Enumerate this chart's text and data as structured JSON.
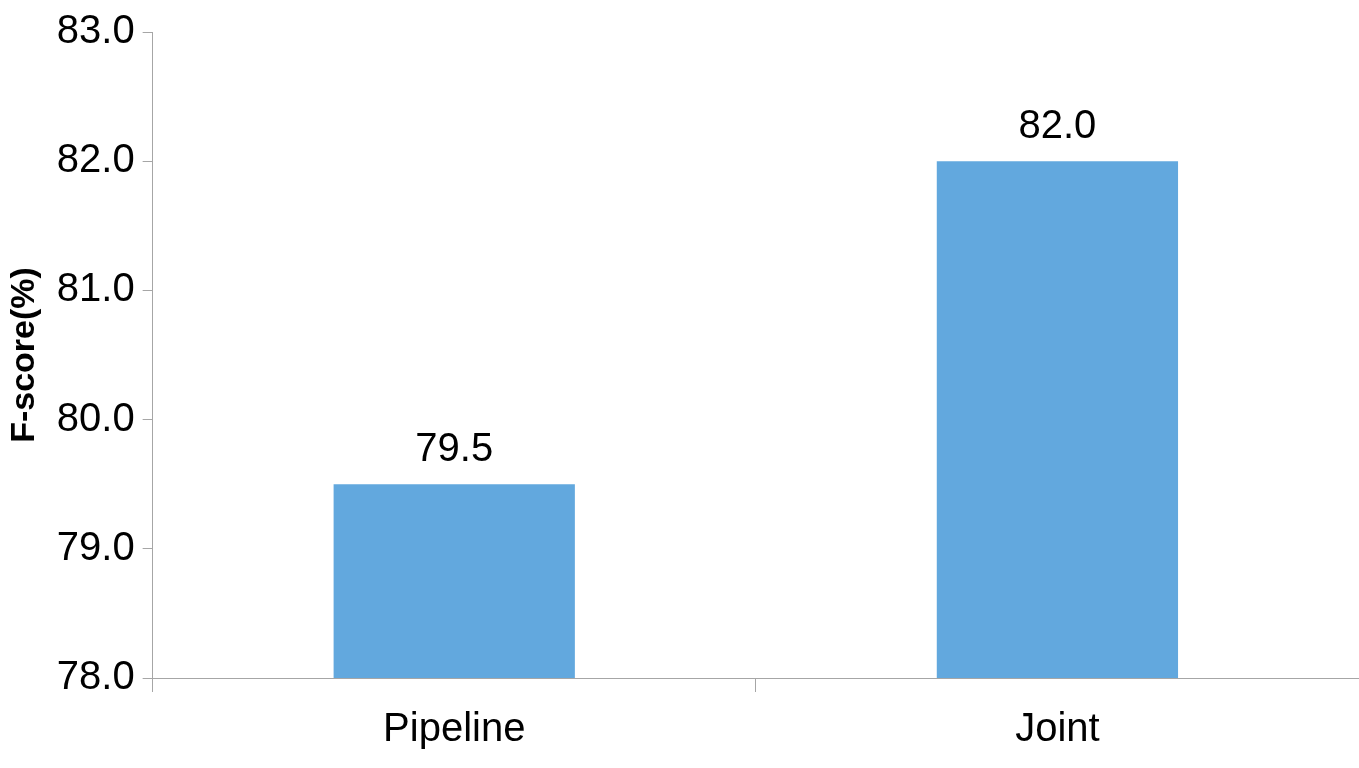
{
  "chart_data": {
    "type": "bar",
    "ylabel": "F-score(%)",
    "categories": [
      "Pipeline",
      "Joint"
    ],
    "series": [
      {
        "color": "#62a8de",
        "values": [
          79.5,
          82.0
        ],
        "value_labels": [
          "79.5",
          "82.0"
        ]
      }
    ],
    "ylim": [
      78,
      83
    ],
    "yticks": [
      {
        "value": 78,
        "label": "78.0"
      },
      {
        "value": 79,
        "label": "79.0"
      },
      {
        "value": 80,
        "label": "80.0"
      },
      {
        "value": 81,
        "label": "81.0"
      },
      {
        "value": 82,
        "label": "82.0"
      },
      {
        "value": 83,
        "label": "83.0"
      }
    ],
    "grid": false
  }
}
